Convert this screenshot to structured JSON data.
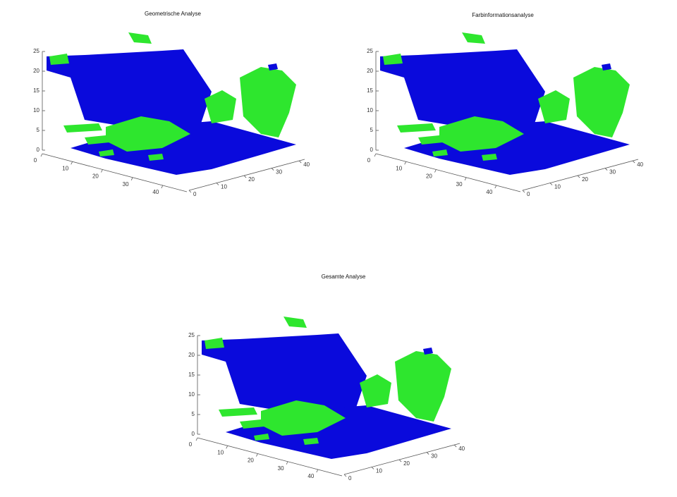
{
  "chart_data": [
    {
      "type": "scatter3d",
      "title": "Geometrische Analyse",
      "xlim": [
        0,
        48
      ],
      "xticks": [
        0,
        10,
        20,
        30,
        40
      ],
      "ylim": [
        0,
        42
      ],
      "yticks": [
        0,
        10,
        20,
        30,
        40
      ],
      "zlim": [
        0,
        25
      ],
      "zticks": [
        0,
        5,
        10,
        15,
        20,
        25
      ]
    },
    {
      "type": "scatter3d",
      "title": "Farbinformationsanalyse",
      "xlim": [
        0,
        48
      ],
      "xticks": [
        0,
        10,
        20,
        30,
        40
      ],
      "ylim": [
        0,
        42
      ],
      "yticks": [
        0,
        10,
        20,
        30,
        40
      ],
      "zlim": [
        0,
        25
      ],
      "zticks": [
        0,
        5,
        10,
        15,
        20,
        25
      ]
    },
    {
      "type": "scatter3d",
      "title": "Gesamte Analyse",
      "xlim": [
        0,
        48
      ],
      "xticks": [
        0,
        10,
        20,
        30,
        40
      ],
      "ylim": [
        0,
        42
      ],
      "yticks": [
        0,
        10,
        20,
        30,
        40
      ],
      "zlim": [
        0,
        25
      ],
      "zticks": [
        0,
        5,
        10,
        15,
        20,
        25
      ]
    }
  ]
}
